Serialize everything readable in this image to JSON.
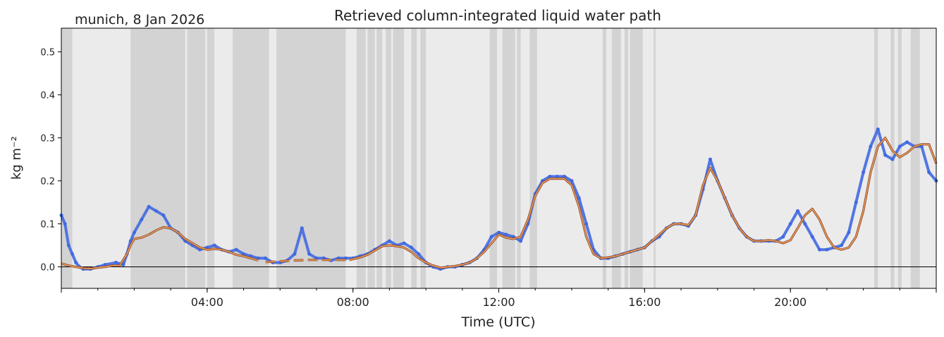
{
  "header": {
    "location_date": "munich, 8 Jan 2026"
  },
  "chart_data": {
    "type": "line",
    "title": "Retrieved column-integrated liquid water path",
    "xlabel": "Time (UTC)",
    "ylabel": "kg m⁻²",
    "x_unit": "hours UTC",
    "xlim": [
      0,
      24
    ],
    "ylim": [
      -0.05,
      0.555
    ],
    "x_ticks": [
      {
        "value": 4,
        "label": "04:00"
      },
      {
        "value": 8,
        "label": "08:00"
      },
      {
        "value": 12,
        "label": "12:00"
      },
      {
        "value": 16,
        "label": "16:00"
      },
      {
        "value": 20,
        "label": "20:00"
      }
    ],
    "y_ticks": [
      {
        "value": 0.0,
        "label": "0.0"
      },
      {
        "value": 0.1,
        "label": "0.1"
      },
      {
        "value": 0.2,
        "label": "0.2"
      },
      {
        "value": 0.3,
        "label": "0.3"
      },
      {
        "value": 0.4,
        "label": "0.4"
      },
      {
        "value": 0.5,
        "label": "0.5"
      }
    ],
    "zero_line": true,
    "colors": {
      "background": "#ebebeb",
      "flagged": "#d3d3d3",
      "raw": "#4169e1",
      "smooth_outer": "#8b4a2b",
      "smooth_inner": "#f4a460"
    },
    "flagged_intervals": [
      [
        0,
        0.3
      ],
      [
        1.9,
        3.4
      ],
      [
        3.45,
        3.95
      ],
      [
        4.0,
        4.2
      ],
      [
        4.7,
        5.7
      ],
      [
        5.9,
        7.8
      ],
      [
        8.1,
        8.35
      ],
      [
        8.4,
        8.6
      ],
      [
        8.65,
        8.8
      ],
      [
        8.9,
        9.05
      ],
      [
        9.1,
        9.4
      ],
      [
        9.6,
        9.75
      ],
      [
        9.85,
        10.0
      ],
      [
        11.75,
        11.95
      ],
      [
        12.1,
        12.45
      ],
      [
        12.5,
        12.6
      ],
      [
        12.85,
        13.05
      ],
      [
        14.85,
        14.95
      ],
      [
        15.1,
        15.35
      ],
      [
        15.45,
        15.55
      ],
      [
        15.6,
        15.95
      ],
      [
        16.25,
        16.3
      ],
      [
        22.3,
        22.4
      ],
      [
        22.75,
        22.85
      ],
      [
        22.95,
        23.05
      ],
      [
        23.3,
        23.55
      ]
    ],
    "series": [
      {
        "style": "scatter",
        "x": [
          0,
          0.1,
          0.2,
          0.3,
          0.4,
          0.5,
          0.6,
          0.8,
          1.0,
          1.2,
          1.5,
          1.7,
          1.8,
          1.9,
          2.0,
          2.2,
          2.4,
          2.6,
          2.8,
          3.0,
          3.2,
          3.4,
          3.6,
          3.8,
          4.0,
          4.2,
          4.4,
          4.6,
          4.8,
          5.0,
          5.2,
          5.4,
          5.6,
          5.8,
          6.0,
          6.2,
          6.4,
          6.6,
          6.8,
          7.0,
          7.2,
          7.4,
          7.6,
          7.8,
          8.0,
          8.2,
          8.4,
          8.6,
          8.8,
          9.0,
          9.2,
          9.4,
          9.6,
          9.8,
          10.0,
          10.2,
          10.4,
          10.6,
          10.8,
          11.0,
          11.2,
          11.4,
          11.6,
          11.8,
          12.0,
          12.2,
          12.4,
          12.6,
          12.8,
          13.0,
          13.2,
          13.4,
          13.6,
          13.8,
          14.0,
          14.2,
          14.4,
          14.6,
          14.8,
          15.0,
          15.2,
          15.4,
          15.6,
          15.8,
          16.0,
          16.2,
          16.4,
          16.6,
          16.8,
          17.0,
          17.2,
          17.4,
          17.6,
          17.8,
          18.0,
          18.2,
          18.4,
          18.6,
          18.8,
          19.0,
          19.2,
          19.4,
          19.6,
          19.8,
          20.0,
          20.2,
          20.4,
          20.6,
          20.8,
          21.0,
          21.2,
          21.4,
          21.6,
          21.8,
          22.0,
          22.2,
          22.4,
          22.6,
          22.8,
          23.0,
          23.2,
          23.4,
          23.6,
          23.8,
          24.0
        ],
        "y": [
          0.12,
          0.1,
          0.05,
          0.03,
          0.01,
          0.0,
          -0.005,
          -0.005,
          0.0,
          0.005,
          0.01,
          0.005,
          0.03,
          0.06,
          0.08,
          0.11,
          0.14,
          0.13,
          0.12,
          0.09,
          0.08,
          0.06,
          0.05,
          0.04,
          0.045,
          0.05,
          0.04,
          0.035,
          0.04,
          0.03,
          0.025,
          0.02,
          0.02,
          0.01,
          0.01,
          0.015,
          0.03,
          0.09,
          0.03,
          0.02,
          0.02,
          0.015,
          0.02,
          0.02,
          0.02,
          0.025,
          0.03,
          0.04,
          0.05,
          0.06,
          0.05,
          0.055,
          0.045,
          0.03,
          0.01,
          0.0,
          -0.005,
          0.0,
          0.0,
          0.005,
          0.01,
          0.02,
          0.04,
          0.07,
          0.08,
          0.075,
          0.07,
          0.06,
          0.1,
          0.17,
          0.2,
          0.21,
          0.21,
          0.21,
          0.2,
          0.16,
          0.1,
          0.04,
          0.02,
          0.02,
          0.025,
          0.03,
          0.035,
          0.04,
          0.045,
          0.06,
          0.07,
          0.09,
          0.1,
          0.1,
          0.095,
          0.12,
          0.18,
          0.25,
          0.2,
          0.16,
          0.12,
          0.09,
          0.07,
          0.06,
          0.06,
          0.06,
          0.06,
          0.07,
          0.1,
          0.13,
          0.1,
          0.07,
          0.04,
          0.04,
          0.045,
          0.05,
          0.08,
          0.15,
          0.22,
          0.28,
          0.32,
          0.26,
          0.25,
          0.28,
          0.29,
          0.28,
          0.28,
          0.22,
          0.2
        ]
      },
      {
        "style": "line",
        "x": [
          0,
          0.2,
          0.4,
          0.6,
          0.8,
          1.0,
          1.2,
          1.4,
          1.6,
          1.8,
          1.9,
          2.0,
          2.2,
          2.4,
          2.6,
          2.8,
          3.0,
          3.2,
          3.4,
          3.6,
          3.8,
          4.0,
          4.2,
          4.4,
          4.6,
          4.8,
          5.0,
          5.2,
          5.4
        ],
        "y": [
          0.008,
          0.003,
          0.0,
          -0.003,
          -0.004,
          -0.002,
          0.0,
          0.003,
          0.003,
          0.03,
          0.05,
          0.065,
          0.068,
          0.075,
          0.085,
          0.092,
          0.09,
          0.08,
          0.065,
          0.055,
          0.045,
          0.04,
          0.042,
          0.04,
          0.035,
          0.028,
          0.025,
          0.02,
          0.015
        ]
      },
      {
        "style": "dashed",
        "x": [
          5.6,
          6.0,
          6.4,
          6.8,
          7.2,
          7.6,
          7.9
        ],
        "y": [
          0.011,
          0.013,
          0.015,
          0.016,
          0.016,
          0.016,
          0.016
        ]
      },
      {
        "style": "line",
        "x": [
          7.9,
          8.2,
          8.4,
          8.6,
          8.8,
          9.0,
          9.2,
          9.4,
          9.6,
          9.8,
          10.0,
          10.2,
          10.4,
          10.6,
          10.8,
          11.0,
          11.2,
          11.4,
          11.6,
          11.8,
          12.0,
          12.2,
          12.4,
          12.6,
          12.8,
          13.0,
          13.2,
          13.4,
          13.6,
          13.8,
          14.0,
          14.2,
          14.4,
          14.6,
          14.8,
          15.0,
          15.2,
          15.4,
          15.6,
          15.8,
          16.0,
          16.2,
          16.4,
          16.6,
          16.8,
          17.0,
          17.2,
          17.4,
          17.6,
          17.8,
          18.0,
          18.2,
          18.4,
          18.6,
          18.8,
          19.0,
          19.2,
          19.4,
          19.6,
          19.8,
          20.0,
          20.2,
          20.4,
          20.6,
          20.8,
          21.0,
          21.2,
          21.4,
          21.6,
          21.8,
          22.0,
          22.2,
          22.4,
          22.6,
          22.8,
          23.0,
          23.2,
          23.4,
          23.6,
          23.8,
          24.0
        ],
        "y": [
          0.016,
          0.022,
          0.028,
          0.038,
          0.048,
          0.05,
          0.048,
          0.045,
          0.035,
          0.02,
          0.01,
          0.003,
          -0.002,
          0.0,
          0.002,
          0.005,
          0.01,
          0.02,
          0.035,
          0.055,
          0.075,
          0.068,
          0.065,
          0.07,
          0.11,
          0.165,
          0.195,
          0.205,
          0.205,
          0.205,
          0.19,
          0.14,
          0.07,
          0.03,
          0.02,
          0.022,
          0.025,
          0.03,
          0.035,
          0.04,
          0.045,
          0.06,
          0.075,
          0.09,
          0.1,
          0.1,
          0.097,
          0.12,
          0.19,
          0.23,
          0.2,
          0.16,
          0.12,
          0.09,
          0.07,
          0.06,
          0.06,
          0.062,
          0.06,
          0.055,
          0.062,
          0.09,
          0.12,
          0.135,
          0.11,
          0.07,
          0.045,
          0.04,
          0.045,
          0.07,
          0.13,
          0.22,
          0.28,
          0.3,
          0.27,
          0.255,
          0.265,
          0.28,
          0.285,
          0.285,
          0.24
        ]
      }
    ]
  }
}
